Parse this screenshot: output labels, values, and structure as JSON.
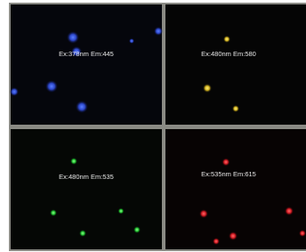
{
  "panels": [
    {
      "label": "Ex:378nm Em:445"
    },
    {
      "label": "Ex:480nm Em:580"
    },
    {
      "label": "Ex:480nm Em:535"
    },
    {
      "label": "Ex:535nm Em:615"
    }
  ]
}
